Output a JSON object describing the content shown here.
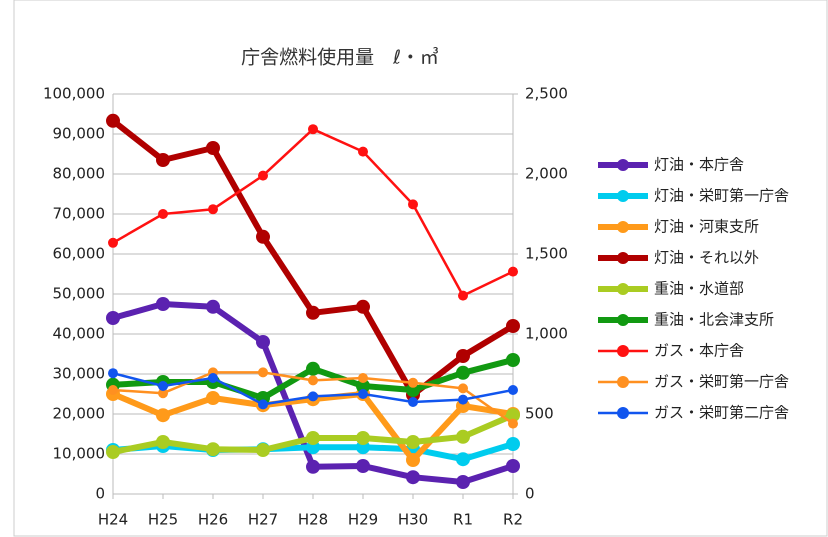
{
  "chart_data": {
    "type": "line",
    "title": "庁舎燃料使用量　ℓ・㎥",
    "categories": [
      "H24",
      "H25",
      "H26",
      "H27",
      "H28",
      "H29",
      "H30",
      "R1",
      "R2"
    ],
    "ylim": [
      0,
      100000
    ],
    "yticks": [
      {
        "value": 0,
        "label": "0"
      },
      {
        "value": 10000,
        "label": "10,000"
      },
      {
        "value": 20000,
        "label": "20,000"
      },
      {
        "value": 30000,
        "label": "30,000"
      },
      {
        "value": 40000,
        "label": "40,000"
      },
      {
        "value": 50000,
        "label": "50,000"
      },
      {
        "value": 60000,
        "label": "60,000"
      },
      {
        "value": 70000,
        "label": "70,000"
      },
      {
        "value": 80000,
        "label": "80,000"
      },
      {
        "value": 90000,
        "label": "90,000"
      },
      {
        "value": 100000,
        "label": "100,000"
      }
    ],
    "y2lim": [
      0,
      2500
    ],
    "y2ticks": [
      0,
      500,
      {
        "value": 1000,
        "label": "1,000"
      },
      {
        "value": 1500,
        "label": "1,500"
      },
      {
        "value": 2000,
        "label": "2,000"
      },
      {
        "value": 2500,
        "label": "2,500"
      }
    ],
    "grid": true,
    "legend": "right",
    "series": [
      {
        "name": "灯油・本庁舎",
        "color": "#5b22b0",
        "values": [
          44000,
          47500,
          46800,
          38000,
          6800,
          7000,
          4200,
          3000,
          7000
        ]
      },
      {
        "name": "灯油・栄町第一庁舎",
        "color": "#00ccee",
        "values": [
          11000,
          12000,
          11000,
          11200,
          11700,
          11700,
          11200,
          8700,
          12500
        ]
      },
      {
        "name": "灯油・河東支所",
        "color": "#ff9a1a",
        "values": [
          25000,
          19700,
          24000,
          22200,
          23700,
          25000,
          8500,
          22000,
          20000
        ]
      },
      {
        "name": "灯油・それ以外",
        "color": "#b00000",
        "values": [
          93300,
          83500,
          86500,
          64300,
          45300,
          46800,
          24800,
          34500,
          42000
        ]
      },
      {
        "name": "重油・水道部",
        "color": "#aacc22",
        "values": [
          10500,
          13000,
          11200,
          11000,
          14000,
          14000,
          13000,
          14300,
          19700
        ]
      },
      {
        "name": "重油・北会津支所",
        "color": "#119911",
        "values": [
          27300,
          28000,
          28000,
          24000,
          31300,
          27000,
          26000,
          30300,
          33500
        ]
      },
      {
        "name": "ガス・本庁舎",
        "color": "#ff1111",
        "axis": "y2",
        "values": [
          1570,
          1750,
          1780,
          1990,
          2280,
          2140,
          1810,
          1240,
          1390
        ]
      },
      {
        "name": "ガス・栄町第一庁舎",
        "color": "#ff9020",
        "axis": "y2",
        "values": [
          650,
          630,
          760,
          760,
          710,
          725,
          695,
          660,
          440
        ]
      },
      {
        "name": "ガス・栄町第二庁舎",
        "color": "#1155ee",
        "axis": "y2",
        "values": [
          755,
          675,
          725,
          560,
          610,
          625,
          575,
          590,
          650
        ]
      }
    ]
  }
}
